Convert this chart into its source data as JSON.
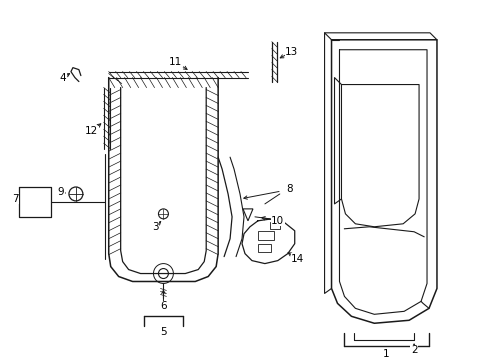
{
  "bg_color": "#ffffff",
  "lc": "#1a1a1a",
  "figsize": [
    4.89,
    3.6
  ],
  "dpi": 100
}
